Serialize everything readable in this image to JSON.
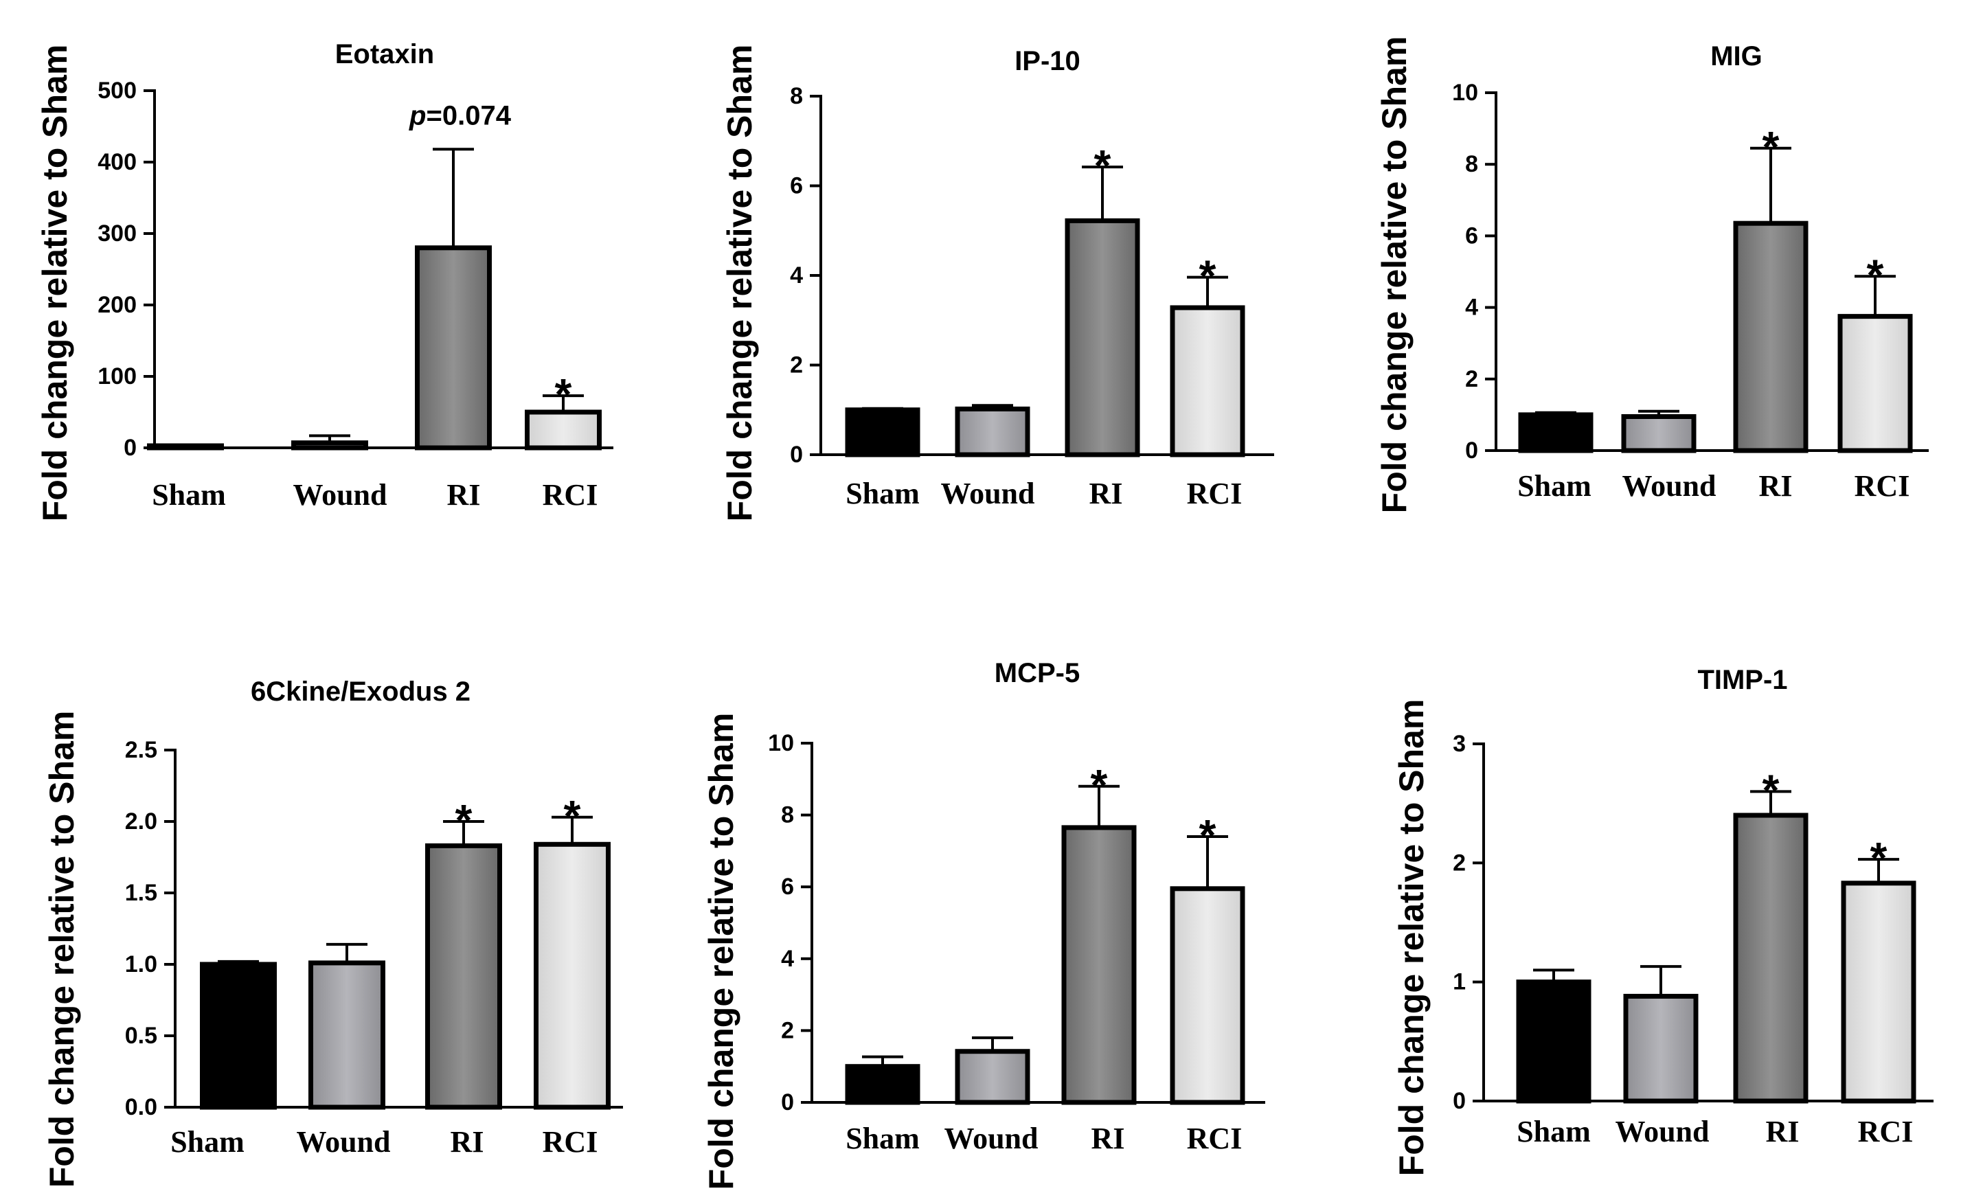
{
  "chart_data": [
    {
      "type": "bar",
      "title": "Eotaxin",
      "ylabel": "Fold change relative to Sham",
      "categories": [
        "Sham",
        "Wound",
        "RI",
        "RCI"
      ],
      "values": [
        1,
        7,
        280,
        50
      ],
      "errors": [
        0,
        10,
        138,
        23
      ],
      "annotations": [
        "",
        "",
        "p=0.074",
        "*"
      ],
      "yticks": [
        "0",
        "100",
        "200",
        "300",
        "400",
        "500"
      ],
      "ylim": [
        0,
        500
      ]
    },
    {
      "type": "bar",
      "title": "IP-10",
      "ylabel": "Fold change relative to Sham",
      "categories": [
        "Sham",
        "Wound",
        "RI",
        "RCI"
      ],
      "values": [
        1.0,
        1.02,
        5.22,
        3.28
      ],
      "errors": [
        0.03,
        0.08,
        1.2,
        0.68
      ],
      "annotations": [
        "",
        "",
        "*",
        "*"
      ],
      "yticks": [
        "0",
        "2",
        "4",
        "6",
        "8"
      ],
      "ylim": [
        0,
        8
      ]
    },
    {
      "type": "bar",
      "title": "MIG",
      "ylabel": "Fold change relative to Sham",
      "categories": [
        "Sham",
        "Wound",
        "RI",
        "RCI"
      ],
      "values": [
        1.0,
        0.95,
        6.35,
        3.75
      ],
      "errors": [
        0.06,
        0.15,
        2.1,
        1.12
      ],
      "annotations": [
        "",
        "",
        "*",
        "*"
      ],
      "yticks": [
        "0",
        "2",
        "4",
        "6",
        "8",
        "10"
      ],
      "ylim": [
        0,
        10
      ]
    },
    {
      "type": "bar",
      "title": "6Ckine/Exodus 2",
      "ylabel": "Fold change relative to Sham",
      "categories": [
        "Sham",
        "Wound",
        "RI",
        "RCI"
      ],
      "values": [
        1.0,
        1.01,
        1.83,
        1.84
      ],
      "errors": [
        0.02,
        0.13,
        0.17,
        0.19
      ],
      "annotations": [
        "",
        "",
        "*",
        "*"
      ],
      "yticks": [
        "0.0",
        "0.5",
        "1.0",
        "1.5",
        "2.0",
        "2.5"
      ],
      "ylim": [
        0,
        2.5
      ]
    },
    {
      "type": "bar",
      "title": "MCP-5",
      "ylabel": "Fold change relative to Sham",
      "categories": [
        "Sham",
        "Wound",
        "RI",
        "RCI"
      ],
      "values": [
        1.0,
        1.42,
        7.65,
        5.95
      ],
      "errors": [
        0.27,
        0.38,
        1.15,
        1.45
      ],
      "annotations": [
        "",
        "",
        "*",
        "*"
      ],
      "yticks": [
        "0",
        "2",
        "4",
        "6",
        "8",
        "10"
      ],
      "ylim": [
        0,
        10
      ]
    },
    {
      "type": "bar",
      "title": "TIMP-1",
      "ylabel": "Fold change relative to Sham",
      "categories": [
        "Sham",
        "Wound",
        "RI",
        "RCI"
      ],
      "values": [
        1.0,
        0.88,
        2.4,
        1.83
      ],
      "errors": [
        0.1,
        0.25,
        0.2,
        0.2
      ],
      "annotations": [
        "",
        "",
        "*",
        "*"
      ],
      "yticks": [
        "0",
        "1",
        "2",
        "3"
      ],
      "ylim": [
        0,
        3
      ]
    }
  ],
  "colors": {
    "axis": "#000000",
    "outline": "#000000",
    "fills": [
      "#000000",
      "#a3a3a8",
      "#7c7c7c",
      "#dcdcdc"
    ],
    "fill_highlights": [
      "#000000",
      "#b8b8bd",
      "#8e8e8e",
      "#e6e6e6"
    ]
  }
}
